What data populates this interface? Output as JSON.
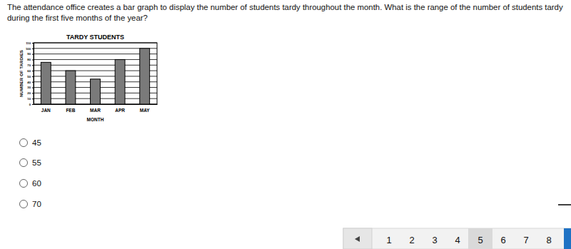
{
  "question": "The attendance office creates a bar graph to display the number of students tardy throughout the month. What is the range of the number of students tardy during the first five months of the year?",
  "chart_data": {
    "type": "bar",
    "title": "TARDY STUDENTS",
    "x_label": "MONTH",
    "y_label": "NUMBER OF TARDIES",
    "categories": [
      "JAN",
      "FEB",
      "MAR",
      "APR",
      "MAY"
    ],
    "values": [
      75,
      60,
      45,
      80,
      100
    ],
    "color": "#7a7a7a",
    "ylim": [
      0,
      110
    ],
    "yticks": [
      0,
      10,
      20,
      30,
      40,
      50,
      60,
      70,
      80,
      90,
      100,
      110
    ],
    "grid": true
  },
  "options": [
    45,
    55,
    60,
    70
  ],
  "pagination": {
    "pages": [
      1,
      2,
      3,
      4,
      5,
      6,
      7,
      8
    ],
    "current": 5
  }
}
